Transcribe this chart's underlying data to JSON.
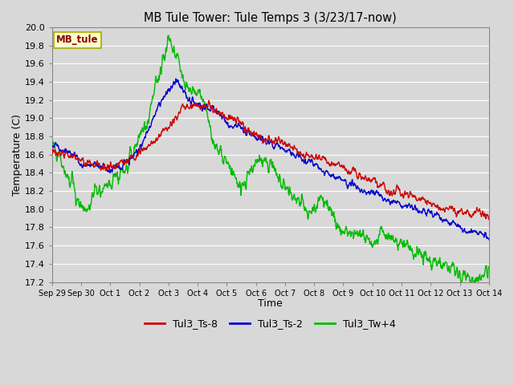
{
  "title": "MB Tule Tower: Tule Temps 3 (3/23/17-now)",
  "xlabel": "Time",
  "ylabel": "Temperature (C)",
  "ylim": [
    17.2,
    20.0
  ],
  "yticks": [
    17.2,
    17.4,
    17.6,
    17.8,
    18.0,
    18.2,
    18.4,
    18.6,
    18.8,
    19.0,
    19.2,
    19.4,
    19.6,
    19.8,
    20.0
  ],
  "xtick_labels": [
    "Sep 29",
    "Sep 30",
    "Oct 1",
    "Oct 2",
    "Oct 3",
    "Oct 4",
    "Oct 5",
    "Oct 6",
    "Oct 7",
    "Oct 8",
    "Oct 9",
    "Oct 10",
    "Oct 11",
    "Oct 12",
    "Oct 13",
    "Oct 14"
  ],
  "colors": {
    "Tul3_Ts-8": "#cc0000",
    "Tul3_Ts-2": "#0000cc",
    "Tul3_Tw+4": "#00bb00"
  },
  "legend_label": "MB_tule",
  "background_color": "#d8d8d8",
  "plot_bg_color": "#d8d8d8",
  "grid_color": "#ffffff",
  "line_width": 1.0
}
